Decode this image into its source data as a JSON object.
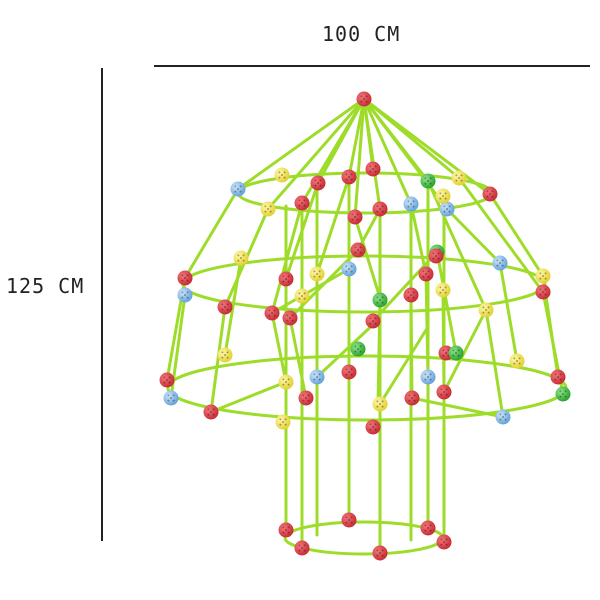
{
  "dimensions": {
    "width_label": "100 CM",
    "height_label": "125 CM"
  },
  "colors": {
    "stick": "#9edc2a",
    "red": "#d9333b",
    "yellow": "#f0e24a",
    "blue": "#7fb6e6",
    "green": "#3ab83a"
  }
}
